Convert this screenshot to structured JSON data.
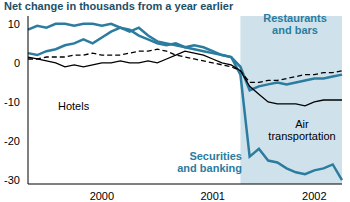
{
  "chart_data": {
    "type": "line",
    "title": "Net change in thousands from a year earlier",
    "categories": [
      null,
      null,
      null,
      null,
      null,
      null,
      null,
      null,
      "2000",
      null,
      null,
      null,
      null,
      null,
      null,
      null,
      null,
      null,
      null,
      null,
      "2001",
      null,
      null,
      null,
      null,
      null,
      null,
      null,
      null,
      null,
      null,
      "2002",
      null,
      null,
      null
    ],
    "series": [
      {
        "name": "Securities and banking",
        "color": "#2b7c9f",
        "line_style": "solid",
        "values": [
          8.5,
          9.5,
          9,
          10,
          10,
          9.5,
          10,
          10,
          9.5,
          10,
          9,
          8.5,
          7,
          6,
          5,
          4.5,
          5,
          4,
          3.5,
          3,
          2.5,
          2,
          1.5,
          -3,
          -24,
          -22,
          -25,
          -25.5,
          -27,
          -28,
          -28.5,
          -27.5,
          -27,
          -26,
          -30
        ]
      },
      {
        "name": "Restaurants and bars",
        "color": "#2b7c9f",
        "line_style": "solid",
        "values": [
          2.5,
          2,
          3,
          3.5,
          4.5,
          5,
          6,
          5,
          6.5,
          8,
          9,
          8,
          9,
          7,
          5.5,
          5,
          4.5,
          4,
          4.5,
          4,
          3,
          2,
          1.5,
          -1,
          -7,
          -6,
          -5.5,
          -5,
          -5.5,
          -5,
          -4.5,
          -4,
          -4,
          -3.5,
          -3
        ]
      },
      {
        "name": "Hotels",
        "color": "#000000",
        "line_style": "dashed",
        "values": [
          1,
          1,
          1.5,
          1.5,
          1.5,
          2,
          2,
          2.5,
          2,
          2,
          2,
          2.5,
          3,
          3,
          3.5,
          3,
          2,
          1.5,
          1,
          0.5,
          0,
          -0.5,
          -1,
          -2,
          -5,
          -5,
          -4.5,
          -4.5,
          -4,
          -3.5,
          -3,
          -3,
          -2.5,
          -2.5,
          -2
        ]
      },
      {
        "name": "Air transportation",
        "color": "#000000",
        "line_style": "solid",
        "values": [
          1.5,
          1,
          0.5,
          0,
          -1,
          -0.5,
          -1,
          -0.5,
          0,
          0,
          0.5,
          0,
          0,
          0.5,
          0,
          1,
          2,
          3,
          2.5,
          2,
          1,
          0,
          -0.5,
          -2,
          -6,
          -8,
          -10,
          -10.5,
          -10.5,
          -10.5,
          -11,
          -10,
          -9.5,
          -9.5,
          -9.5
        ]
      }
    ],
    "ylim": [
      -31,
      12
    ],
    "yticks": [
      -30,
      -20,
      -10,
      0,
      10
    ],
    "grid": false,
    "shaded": {
      "from": 23,
      "to": 34
    }
  }
}
